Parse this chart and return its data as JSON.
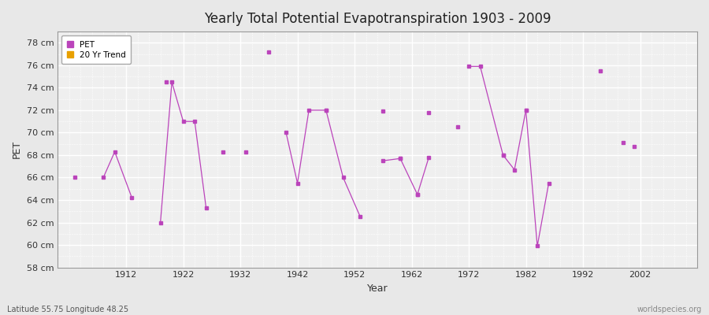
{
  "title": "Yearly Total Potential Evapotranspiration 1903 - 2009",
  "xlabel": "Year",
  "ylabel": "PET",
  "bottom_left": "Latitude 55.75 Longitude 48.25",
  "bottom_right": "worldspecies.org",
  "bg_color": "#e8e8e8",
  "plot_bg_color": "#efefef",
  "grid_color": "#ffffff",
  "line_color": "#bb44bb",
  "ylim": [
    58,
    79
  ],
  "xlim": [
    1900,
    2012
  ],
  "yticks": [
    58,
    60,
    62,
    64,
    66,
    68,
    70,
    72,
    74,
    76,
    78
  ],
  "ytick_labels": [
    "58 cm",
    "60 cm",
    "62 cm",
    "64 cm",
    "66 cm",
    "68 cm",
    "70 cm",
    "72 cm",
    "74 cm",
    "76 cm",
    "78 cm"
  ],
  "xticks": [
    1912,
    1922,
    1932,
    1942,
    1952,
    1962,
    1972,
    1982,
    1992,
    2002
  ],
  "connected_segments": [
    {
      "x": [
        1908,
        1910,
        1913
      ],
      "y": [
        66.0,
        68.3,
        64.2
      ]
    },
    {
      "x": [
        1918,
        1920,
        1922,
        1924,
        1926
      ],
      "y": [
        62.0,
        74.5,
        71.0,
        71.0,
        63.3
      ]
    },
    {
      "x": [
        1940,
        1942,
        1944,
        1947
      ],
      "y": [
        70.0,
        65.5,
        72.0,
        72.0
      ]
    },
    {
      "x": [
        1947,
        1950,
        1953
      ],
      "y": [
        72.0,
        66.0,
        62.5
      ]
    },
    {
      "x": [
        1957,
        1960
      ],
      "y": [
        67.5,
        67.7
      ]
    },
    {
      "x": [
        1960,
        1963
      ],
      "y": [
        67.7,
        64.5
      ]
    },
    {
      "x": [
        1963,
        1965
      ],
      "y": [
        64.5,
        67.8
      ]
    },
    {
      "x": [
        1972,
        1974,
        1978
      ],
      "y": [
        75.9,
        75.9,
        68.0
      ]
    },
    {
      "x": [
        1978,
        1980,
        1982
      ],
      "y": [
        68.0,
        66.7,
        72.0
      ]
    },
    {
      "x": [
        1982,
        1984,
        1986
      ],
      "y": [
        72.0,
        59.9,
        65.5
      ]
    }
  ],
  "isolated_points": [
    [
      1903,
      66.0
    ],
    [
      1919,
      74.5
    ],
    [
      1929,
      68.3
    ],
    [
      1933,
      68.3
    ],
    [
      1937,
      77.2
    ],
    [
      1957,
      71.9
    ],
    [
      1965,
      71.8
    ],
    [
      1970,
      70.5
    ],
    [
      1995,
      75.5
    ],
    [
      1999,
      69.1
    ],
    [
      2001,
      68.8
    ]
  ]
}
